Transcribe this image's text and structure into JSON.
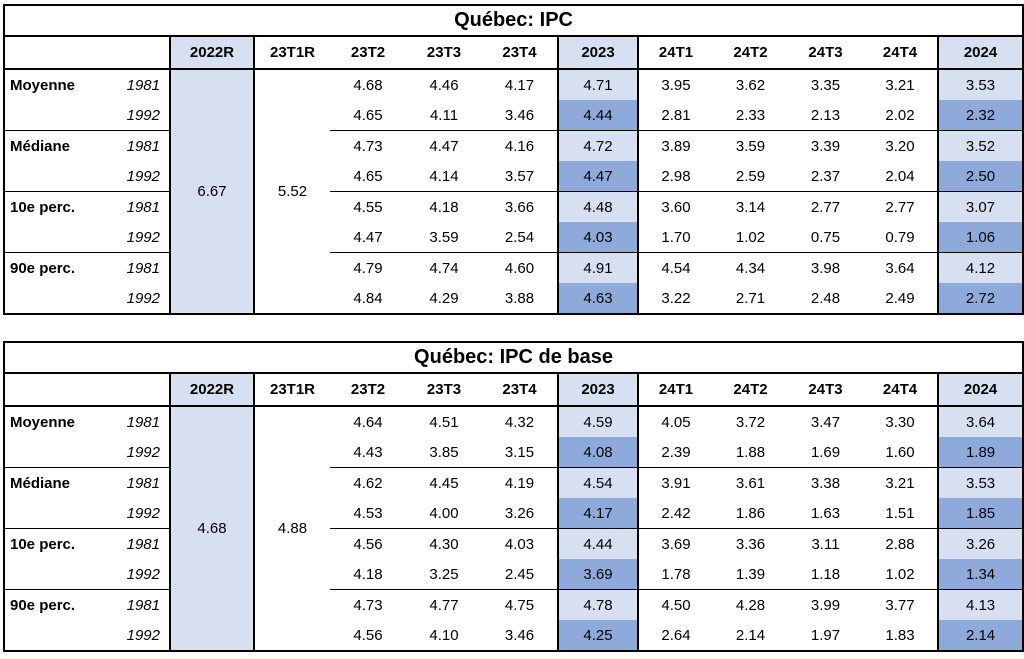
{
  "colors": {
    "light_blue": "#D6E0F1",
    "medium_blue": "#8EAADB",
    "border": "#000000",
    "text": "#000000"
  },
  "tables": [
    {
      "title": "Québec: IPC",
      "columns": [
        "2022R",
        "23T1R",
        "23T2",
        "23T3",
        "23T4",
        "2023",
        "24T1",
        "24T2",
        "24T3",
        "24T4",
        "2024"
      ],
      "merged_2022r": "6.67",
      "merged_23t1r": "5.52",
      "rows": [
        {
          "label": "Moyenne",
          "year": "1981",
          "values": [
            "4.68",
            "4.46",
            "4.17",
            "4.71",
            "3.95",
            "3.62",
            "3.35",
            "3.21",
            "3.53"
          ]
        },
        {
          "label": "",
          "year": "1992",
          "values": [
            "4.65",
            "4.11",
            "3.46",
            "4.44",
            "2.81",
            "2.33",
            "2.13",
            "2.02",
            "2.32"
          ]
        },
        {
          "label": "Médiane",
          "year": "1981",
          "values": [
            "4.73",
            "4.47",
            "4.16",
            "4.72",
            "3.89",
            "3.59",
            "3.39",
            "3.20",
            "3.52"
          ]
        },
        {
          "label": "",
          "year": "1992",
          "values": [
            "4.65",
            "4.14",
            "3.57",
            "4.47",
            "2.98",
            "2.59",
            "2.37",
            "2.04",
            "2.50"
          ]
        },
        {
          "label": "10e perc.",
          "year": "1981",
          "values": [
            "4.55",
            "4.18",
            "3.66",
            "4.48",
            "3.60",
            "3.14",
            "2.77",
            "2.77",
            "3.07"
          ]
        },
        {
          "label": "",
          "year": "1992",
          "values": [
            "4.47",
            "3.59",
            "2.54",
            "4.03",
            "1.70",
            "1.02",
            "0.75",
            "0.79",
            "1.06"
          ]
        },
        {
          "label": "90e perc.",
          "year": "1981",
          "values": [
            "4.79",
            "4.74",
            "4.60",
            "4.91",
            "4.54",
            "4.34",
            "3.98",
            "3.64",
            "4.12"
          ]
        },
        {
          "label": "",
          "year": "1992",
          "values": [
            "4.84",
            "4.29",
            "3.88",
            "4.63",
            "3.22",
            "2.71",
            "2.48",
            "2.49",
            "2.72"
          ]
        }
      ]
    },
    {
      "title": "Québec: IPC de base",
      "columns": [
        "2022R",
        "23T1R",
        "23T2",
        "23T3",
        "23T4",
        "2023",
        "24T1",
        "24T2",
        "24T3",
        "24T4",
        "2024"
      ],
      "merged_2022r": "4.68",
      "merged_23t1r": "4.88",
      "rows": [
        {
          "label": "Moyenne",
          "year": "1981",
          "values": [
            "4.64",
            "4.51",
            "4.32",
            "4.59",
            "4.05",
            "3.72",
            "3.47",
            "3.30",
            "3.64"
          ]
        },
        {
          "label": "",
          "year": "1992",
          "values": [
            "4.43",
            "3.85",
            "3.15",
            "4.08",
            "2.39",
            "1.88",
            "1.69",
            "1.60",
            "1.89"
          ]
        },
        {
          "label": "Médiane",
          "year": "1981",
          "values": [
            "4.62",
            "4.45",
            "4.19",
            "4.54",
            "3.91",
            "3.61",
            "3.38",
            "3.21",
            "3.53"
          ]
        },
        {
          "label": "",
          "year": "1992",
          "values": [
            "4.53",
            "4.00",
            "3.26",
            "4.17",
            "2.42",
            "1.86",
            "1.63",
            "1.51",
            "1.85"
          ]
        },
        {
          "label": "10e perc.",
          "year": "1981",
          "values": [
            "4.56",
            "4.30",
            "4.03",
            "4.44",
            "3.69",
            "3.36",
            "3.11",
            "2.88",
            "3.26"
          ]
        },
        {
          "label": "",
          "year": "1992",
          "values": [
            "4.18",
            "3.25",
            "2.45",
            "3.69",
            "1.78",
            "1.39",
            "1.18",
            "1.02",
            "1.34"
          ]
        },
        {
          "label": "90e perc.",
          "year": "1981",
          "values": [
            "4.73",
            "4.77",
            "4.75",
            "4.78",
            "4.50",
            "4.28",
            "3.99",
            "3.77",
            "4.13"
          ]
        },
        {
          "label": "",
          "year": "1992",
          "values": [
            "4.56",
            "4.10",
            "3.46",
            "4.25",
            "2.64",
            "2.14",
            "1.97",
            "1.83",
            "2.14"
          ]
        }
      ]
    }
  ]
}
